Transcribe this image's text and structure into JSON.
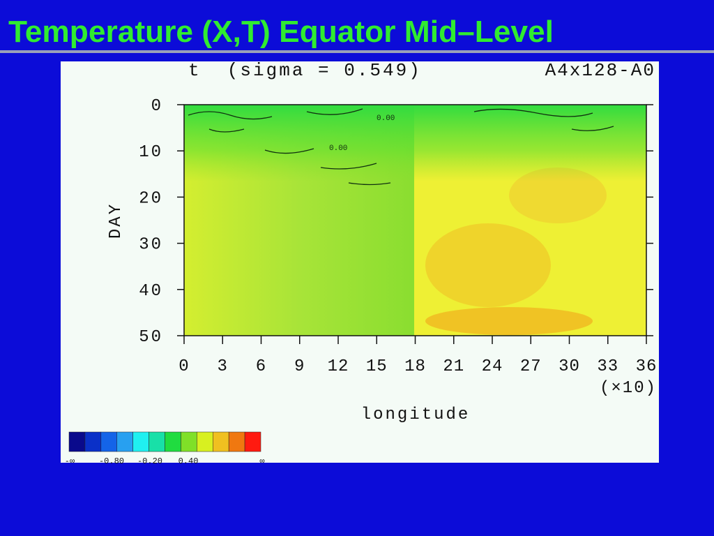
{
  "slide": {
    "title": "Temperature (X,T) Equator  Mid–Level"
  },
  "plot": {
    "title": "t  (sigma = 0.549)",
    "run": "A4x128-A0",
    "y_label": "DAY",
    "x_label": "longitude",
    "x_scale": "(×10)",
    "yticks": [
      0,
      10,
      20,
      30,
      40,
      50
    ],
    "ylim": [
      0,
      50
    ],
    "xticks": [
      0,
      3,
      6,
      9,
      12,
      15,
      18,
      21,
      24,
      27,
      30,
      33,
      36
    ],
    "xlim": [
      0,
      36
    ],
    "contour_labels": [
      "0.00",
      "0.00"
    ],
    "colorbar": {
      "colors": [
        "#0a0a8c",
        "#0a30c8",
        "#1464e8",
        "#28a0f0",
        "#20f0f0",
        "#18e0a8",
        "#20dc40",
        "#80e028",
        "#d8f020",
        "#f0c020",
        "#f07810",
        "#ff1a10"
      ],
      "labels": [
        "-∞",
        "-0.80",
        "-0.20",
        "0.40",
        "∞"
      ]
    }
  }
}
